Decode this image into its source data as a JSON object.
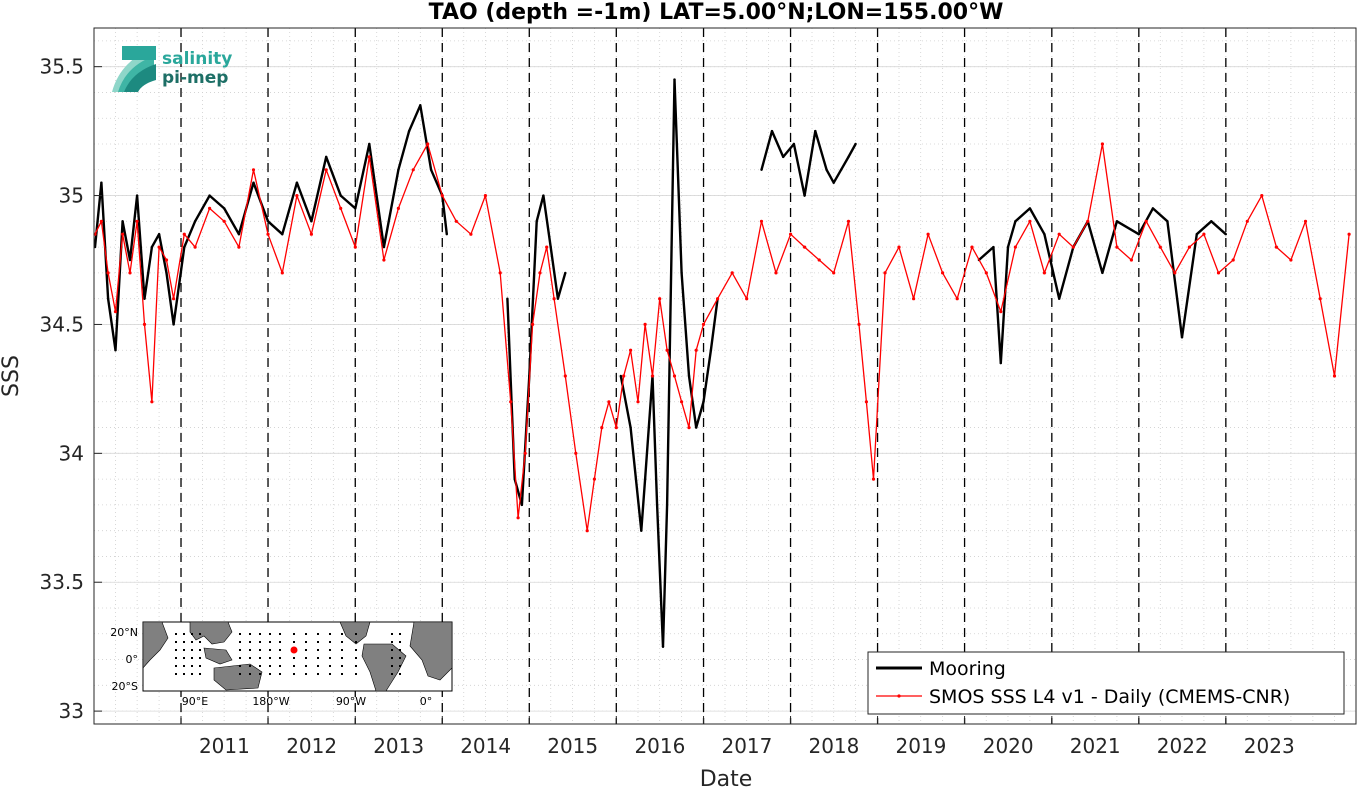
{
  "chart_data": {
    "type": "line",
    "title": "TAO (depth =-1m) LAT=5.00°N;LON=155.00°W",
    "xlabel": "Date",
    "ylabel": "SSS",
    "xlim": [
      "2010-01-01",
      "2024-06-30"
    ],
    "ylim": [
      32.95,
      35.65
    ],
    "x_ticks": [
      "2011",
      "2012",
      "2013",
      "2014",
      "2015",
      "2016",
      "2017",
      "2018",
      "2019",
      "2020",
      "2021",
      "2022",
      "2023"
    ],
    "y_ticks": [
      "33",
      "33.5",
      "34",
      "34.5",
      "35",
      "35.5"
    ],
    "grid": true,
    "legend_position": "bottom-right",
    "year_markers": [
      "2011",
      "2012",
      "2013",
      "2014",
      "2015",
      "2016",
      "2017",
      "2018",
      "2019",
      "2020",
      "2021",
      "2022",
      "2023"
    ],
    "series": [
      {
        "name": "Mooring",
        "color": "#000000",
        "x": [
          "2010-01-05",
          "2010-02-01",
          "2010-03-01",
          "2010-04-01",
          "2010-05-01",
          "2010-06-01",
          "2010-07-01",
          "2010-08-01",
          "2010-09-01",
          "2010-10-01",
          "2010-11-01",
          "2010-12-01",
          "2011-01-15",
          "2011-03-01",
          "2011-05-01",
          "2011-07-01",
          "2011-09-01",
          "2011-11-01",
          "2012-01-01",
          "2012-03-01",
          "2012-05-01",
          "2012-07-01",
          "2012-09-01",
          "2012-11-01",
          "2013-01-01",
          "2013-03-01",
          "2013-05-01",
          "2013-07-01",
          "2013-08-15",
          "2013-10-01",
          "2013-11-15",
          "2014-01-01",
          "2014-01-20",
          "2014-10-01",
          "2014-11-01",
          "2014-12-01",
          "2015-01-01",
          "2015-02-01",
          "2015-03-01",
          "2015-04-01",
          "2015-05-01",
          "2015-06-01",
          "2016-01-20",
          "2016-03-01",
          "2016-04-15",
          "2016-05-01",
          "2016-06-01",
          "2016-06-20",
          "2016-07-15",
          "2016-08-01",
          "2016-09-01",
          "2016-10-01",
          "2016-11-01",
          "2016-12-01",
          "2017-01-01",
          "2017-02-01",
          "2017-03-01",
          "2017-09-01",
          "2017-10-15",
          "2017-12-01",
          "2018-01-15",
          "2018-03-01",
          "2018-04-15",
          "2018-06-01",
          "2018-07-01",
          "2018-08-01",
          "2018-09-01",
          "2018-10-01",
          "2020-03-01",
          "2020-05-01",
          "2020-06-01",
          "2020-07-01",
          "2020-08-01",
          "2020-10-01",
          "2020-12-01",
          "2021-02-01",
          "2021-04-01",
          "2021-06-01",
          "2021-08-01",
          "2021-10-01",
          "2022-01-01",
          "2022-03-01",
          "2022-05-01",
          "2022-07-01",
          "2022-09-01",
          "2022-11-01",
          "2023-01-01"
        ],
        "values": [
          34.8,
          35.05,
          34.6,
          34.4,
          34.9,
          34.75,
          35.0,
          34.6,
          34.8,
          34.85,
          34.7,
          34.5,
          34.8,
          34.9,
          35.0,
          34.95,
          34.85,
          35.05,
          34.9,
          34.85,
          35.05,
          34.9,
          35.15,
          35.0,
          34.95,
          35.2,
          34.8,
          35.1,
          35.25,
          35.35,
          35.1,
          35.0,
          34.85,
          34.6,
          33.9,
          33.8,
          34.3,
          34.9,
          35.0,
          34.8,
          34.6,
          34.7,
          34.3,
          34.1,
          33.7,
          33.9,
          34.3,
          33.8,
          33.25,
          33.8,
          35.45,
          34.7,
          34.3,
          34.1,
          34.2,
          34.4,
          34.6,
          35.1,
          35.25,
          35.15,
          35.2,
          35.0,
          35.25,
          35.1,
          35.05,
          35.1,
          35.15,
          35.2,
          34.75,
          34.8,
          34.35,
          34.8,
          34.9,
          34.95,
          34.85,
          34.6,
          34.8,
          34.9,
          34.7,
          34.9,
          34.85,
          34.95,
          34.9,
          34.45,
          34.85,
          34.9,
          34.85
        ]
      },
      {
        "name": "SMOS SSS L4 v1 - Daily (CMEMS-CNR)",
        "color": "#ff0000",
        "x": [
          "2010-01-05",
          "2010-02-01",
          "2010-03-01",
          "2010-04-01",
          "2010-05-01",
          "2010-06-01",
          "2010-07-01",
          "2010-08-01",
          "2010-09-01",
          "2010-10-01",
          "2010-11-01",
          "2010-12-01",
          "2011-01-15",
          "2011-03-01",
          "2011-05-01",
          "2011-07-01",
          "2011-09-01",
          "2011-11-01",
          "2012-01-01",
          "2012-03-01",
          "2012-05-01",
          "2012-07-01",
          "2012-09-01",
          "2012-11-01",
          "2013-01-01",
          "2013-03-01",
          "2013-05-01",
          "2013-07-01",
          "2013-09-01",
          "2013-11-01",
          "2014-01-01",
          "2014-03-01",
          "2014-05-01",
          "2014-07-01",
          "2014-09-01",
          "2014-10-15",
          "2014-11-15",
          "2014-12-15",
          "2015-01-15",
          "2015-02-15",
          "2015-03-15",
          "2015-04-15",
          "2015-06-01",
          "2015-07-15",
          "2015-09-01",
          "2015-10-01",
          "2015-11-01",
          "2015-12-01",
          "2016-01-01",
          "2016-02-01",
          "2016-03-01",
          "2016-04-01",
          "2016-05-01",
          "2016-06-01",
          "2016-07-01",
          "2016-08-01",
          "2016-09-01",
          "2016-10-01",
          "2016-11-01",
          "2016-12-01",
          "2017-01-01",
          "2017-03-01",
          "2017-05-01",
          "2017-07-01",
          "2017-09-01",
          "2017-11-01",
          "2018-01-01",
          "2018-03-01",
          "2018-05-01",
          "2018-07-01",
          "2018-09-01",
          "2018-10-15",
          "2018-11-15",
          "2018-12-15",
          "2019-02-01",
          "2019-04-01",
          "2019-06-01",
          "2019-08-01",
          "2019-10-01",
          "2019-12-01",
          "2020-02-01",
          "2020-04-01",
          "2020-06-01",
          "2020-08-01",
          "2020-10-01",
          "2020-12-01",
          "2021-02-01",
          "2021-04-01",
          "2021-06-01",
          "2021-08-01",
          "2021-10-01",
          "2021-12-01",
          "2022-02-01",
          "2022-04-01",
          "2022-06-01",
          "2022-08-01",
          "2022-10-01",
          "2022-12-01",
          "2023-02-01",
          "2023-04-01",
          "2023-06-01",
          "2023-08-01",
          "2023-10-01",
          "2023-12-01",
          "2024-02-01",
          "2024-04-01",
          "2024-06-01"
        ],
        "values": [
          34.85,
          34.9,
          34.7,
          34.55,
          34.85,
          34.7,
          34.9,
          34.5,
          34.2,
          34.8,
          34.75,
          34.6,
          34.85,
          34.8,
          34.95,
          34.9,
          34.8,
          35.1,
          34.85,
          34.7,
          35.0,
          34.85,
          35.1,
          34.95,
          34.8,
          35.15,
          34.75,
          34.95,
          35.1,
          35.2,
          35.0,
          34.9,
          34.85,
          35.0,
          34.7,
          34.2,
          33.75,
          34.0,
          34.5,
          34.7,
          34.8,
          34.6,
          34.3,
          34.0,
          33.7,
          33.9,
          34.1,
          34.2,
          34.1,
          34.3,
          34.4,
          34.2,
          34.5,
          34.3,
          34.6,
          34.4,
          34.3,
          34.2,
          34.1,
          34.4,
          34.5,
          34.6,
          34.7,
          34.6,
          34.9,
          34.7,
          34.85,
          34.8,
          34.75,
          34.7,
          34.9,
          34.5,
          34.2,
          33.9,
          34.7,
          34.8,
          34.6,
          34.85,
          34.7,
          34.6,
          34.8,
          34.7,
          34.55,
          34.8,
          34.9,
          34.7,
          34.85,
          34.8,
          34.9,
          35.2,
          34.8,
          34.75,
          34.9,
          34.8,
          34.7,
          34.8,
          34.85,
          34.7,
          34.75,
          34.9,
          35.0,
          34.8,
          34.75,
          34.9,
          34.6,
          34.3,
          34.85
        ]
      }
    ]
  },
  "logo": {
    "line1": "salinity",
    "line2": "pi-mep"
  },
  "inset_map": {
    "lat_labels": [
      "20°N",
      "0°",
      "20°S"
    ],
    "lon_labels": [
      "90°E",
      "180°W",
      "90°W",
      "0°"
    ],
    "marker_color": "#ff0000"
  }
}
